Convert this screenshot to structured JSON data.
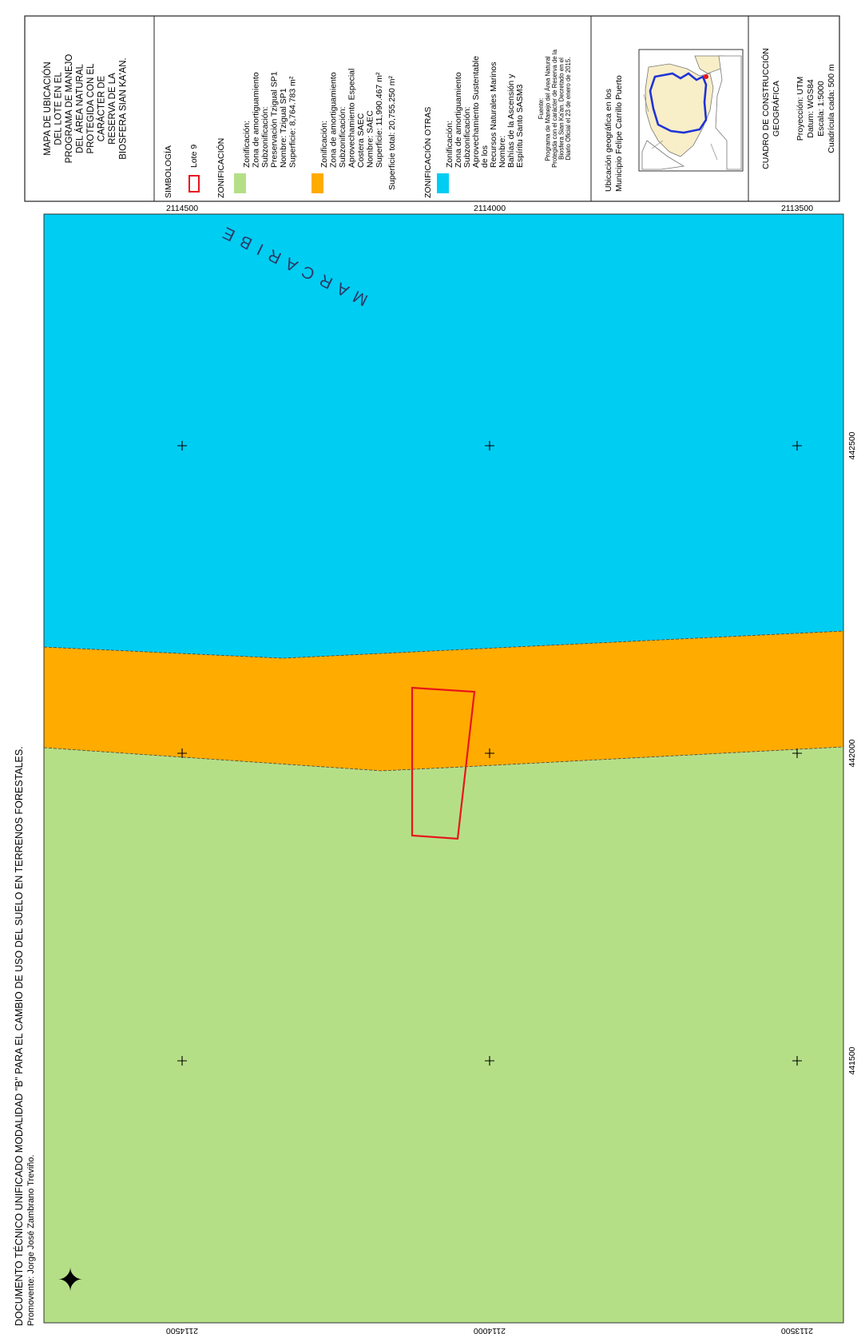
{
  "header_boxes": {
    "title": "MAPA DE UBICACIÓN DEL LOTE EN EL PROGRAMA DE MANEJO DEL ÁREA NATURAL PROTEGIDA CON EL CARÁCTER DE RESERVA DE LA BIOSFERA SIAN KA'AN.",
    "title_lines": [
      "MAPA DE UBICACIÓN",
      "DEL LOTE EN EL",
      "PROGRAMA DE MANEJO",
      "DEL ÁREA NATURAL",
      "PROTEGIDA CON EL",
      "CARÁCTER DE",
      "RESERVA DE LA",
      "BIOSFERA SIAN KA'AN."
    ],
    "legend": {
      "simbologia_label": "SIMBOLOGÍA",
      "lote_label": "Lote 9",
      "zonificacion_label": "ZONIFICACIÓN",
      "sp1_lines": [
        "Zonificación:",
        "Zona de amortiguamiento",
        "Subzonificación:",
        "Preservación Tzigual SP1",
        "Nombre: Tzigual SP1",
        "Superficie: 8,764.783 m²"
      ],
      "saec_lines": [
        "Zonificación:",
        "Zona de amortiguamiento",
        "Subzonificación:",
        "Aprovechamiento Especial",
        "Costera SAEC",
        "Nombre: SAEC",
        "Superficie: 11,990.467 m²"
      ],
      "total_label": "Superficie total: 20,755.250 m²",
      "otras_label": "ZONIFICACIÓN OTRAS",
      "sasm3_lines": [
        "Zonificación:",
        "Zona de amortiguamiento",
        "Subzonificación:",
        "Aprovechamiento Sustentable",
        "de los",
        "Recursos Naturales Marinos",
        "Nombre:",
        "Bahías de la Ascensión y",
        "Espíritu Santo SASM3"
      ],
      "source_lines": [
        "Fuente:",
        "Programa de Manejo del Área Natural",
        "Protegida con el carácter de Reserva de la",
        "Biosfera Sian Ka'an. Decretado en el",
        "Diario Oficial el 23 de enero de 2015."
      ]
    },
    "location": {
      "label_lines": [
        "Ubicación geográfica en los",
        "Municipio Felipe Carrillo Puerto"
      ]
    },
    "construction": {
      "title_lines": [
        "CUADRO DE CONSTRUCCIÓN",
        "GEOGRÁFICA"
      ],
      "info_lines": [
        "Proyección: UTM",
        "Datum: WGS84",
        "Escala: 1:5000",
        "Cuadrícula cada: 500 m"
      ]
    }
  },
  "map": {
    "sea_label": "M A R   C A R I B E",
    "top_ticks": [
      "2114500",
      "2114000",
      "2113500"
    ],
    "bottom_ticks": [
      "2114500",
      "2114000",
      "2113500"
    ],
    "right_ticks": [
      "442500",
      "442000",
      "441500"
    ],
    "footer_lines": [
      "DOCUMENTO TÉCNICO UNIFICADO MODALIDAD \"B\" PARA EL CAMBIO DE USO DEL SUELO EN TERRENOS FORESTALES.",
      "Promovente: Jorge José Zambrano Treviño."
    ],
    "colors": {
      "sea": "#00cdf2",
      "saec": "#ffab00",
      "sp1": "#b5df87",
      "lote": "#e8141c",
      "location_polygon": "#1f33d6"
    },
    "north_arrow_icon": "north-arrow-icon"
  }
}
